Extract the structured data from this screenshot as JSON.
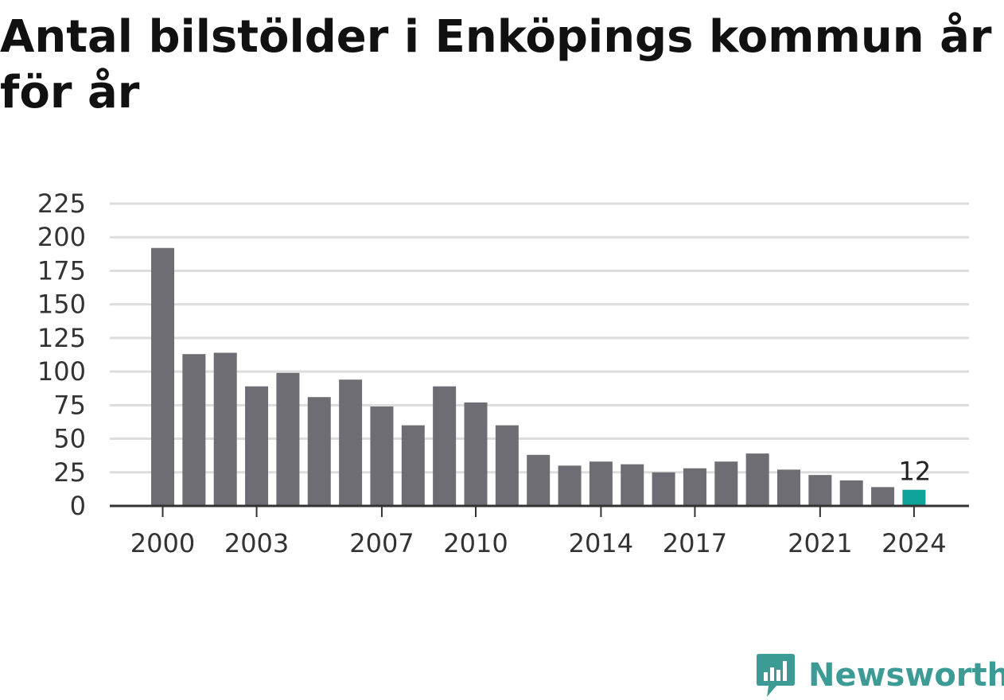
{
  "title": "Antal bilstölder i Enköpings kommun år för år",
  "brand": {
    "name": "Newsworthy",
    "color": "#3c9b95",
    "icon": "newsworthy-logo-icon"
  },
  "colors": {
    "bar": "#6e6d73",
    "highlight": "#10a39a",
    "grid": "#dddddd",
    "axis": "#333333"
  },
  "chart_data": {
    "type": "bar",
    "title": "Antal bilstölder i Enköpings kommun år för år",
    "xlabel": "",
    "ylabel": "",
    "ylim": [
      0,
      225
    ],
    "yticks": [
      0,
      25,
      50,
      75,
      100,
      125,
      150,
      175,
      200,
      225
    ],
    "xtick_labels": [
      "2000",
      "2003",
      "2007",
      "2010",
      "2014",
      "2017",
      "2021",
      "2024"
    ],
    "categories": [
      "2000",
      "2001",
      "2002",
      "2003",
      "2004",
      "2005",
      "2006",
      "2007",
      "2008",
      "2009",
      "2010",
      "2011",
      "2012",
      "2013",
      "2014",
      "2015",
      "2016",
      "2017",
      "2018",
      "2019",
      "2020",
      "2021",
      "2022",
      "2023",
      "2024"
    ],
    "values": [
      192,
      113,
      114,
      89,
      99,
      81,
      94,
      74,
      60,
      89,
      77,
      60,
      38,
      30,
      33,
      31,
      25,
      28,
      33,
      39,
      27,
      23,
      19,
      14,
      12
    ],
    "highlight": {
      "category": "2024",
      "label": "12"
    },
    "grid": true,
    "legend": "none"
  }
}
